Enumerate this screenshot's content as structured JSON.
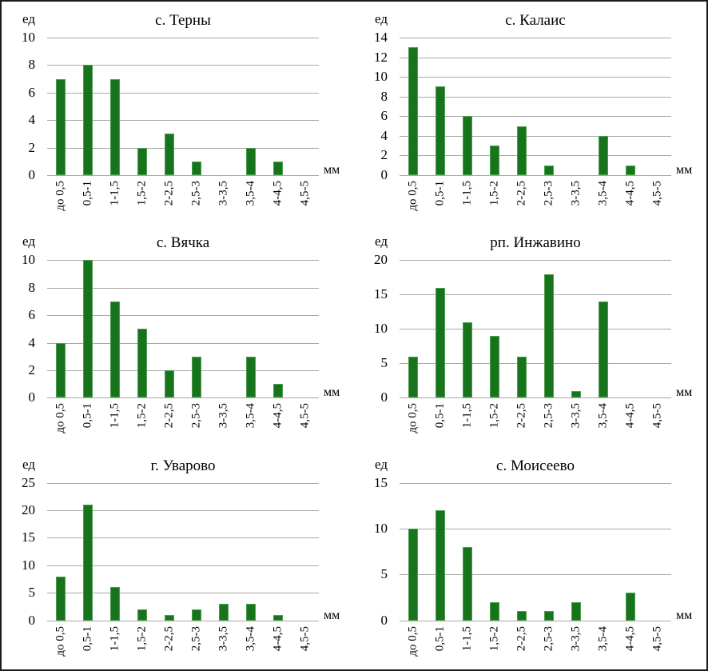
{
  "figure": {
    "background": "#ffffff",
    "border_color": "#1c1c1c",
    "bar_color": "#17741c",
    "grid_color": "#a8a8a8"
  },
  "chart_data": [
    {
      "type": "bar",
      "title": "с. Терны",
      "ylabel": "ед",
      "xlabel": "мм",
      "categories": [
        "до 0,5",
        "0,5-1",
        "1-1,5",
        "1,5-2",
        "2-2,5",
        "2,5-3",
        "3-3,5",
        "3,5-4",
        "4-4,5",
        "4,5-5"
      ],
      "values": [
        7,
        8,
        7,
        2,
        3,
        1,
        0,
        2,
        1,
        0
      ],
      "ylim": [
        0,
        10
      ],
      "ytick_step": 2,
      "grid": true,
      "legend": "none"
    },
    {
      "type": "bar",
      "title": "с. Калаис",
      "ylabel": "ед",
      "xlabel": "мм",
      "categories": [
        "до 0,5",
        "0,5-1",
        "1-1,5",
        "1,5-2",
        "2-2,5",
        "2,5-3",
        "3-3,5",
        "3,5-4",
        "4-4,5",
        "4,5-5"
      ],
      "values": [
        13,
        9,
        6,
        3,
        5,
        1,
        0,
        4,
        1,
        0
      ],
      "ylim": [
        0,
        14
      ],
      "ytick_step": 2,
      "grid": true,
      "legend": "none"
    },
    {
      "type": "bar",
      "title": "с. Вячка",
      "ylabel": "ед",
      "xlabel": "мм",
      "categories": [
        "до 0,5",
        "0,5-1",
        "1-1,5",
        "1,5-2",
        "2-2,5",
        "2,5-3",
        "3-3,5",
        "3,5-4",
        "4-4,5",
        "4,5-5"
      ],
      "values": [
        4,
        10,
        7,
        5,
        2,
        3,
        0,
        3,
        1,
        0
      ],
      "ylim": [
        0,
        10
      ],
      "ytick_step": 2,
      "grid": true,
      "legend": "none"
    },
    {
      "type": "bar",
      "title": "рп. Инжавино",
      "ylabel": "ед",
      "xlabel": "мм",
      "categories": [
        "до 0,5",
        "0,5-1",
        "1-1,5",
        "1,5-2",
        "2-2,5",
        "2,5-3",
        "3-3,5",
        "3,5-4",
        "4-4,5",
        "4,5-5"
      ],
      "values": [
        6,
        16,
        11,
        9,
        6,
        18,
        1,
        14,
        0,
        0
      ],
      "ylim": [
        0,
        20
      ],
      "ytick_step": 5,
      "grid": true,
      "legend": "none"
    },
    {
      "type": "bar",
      "title": "г. Уварово",
      "ylabel": "ед",
      "xlabel": "мм",
      "categories": [
        "до 0,5",
        "0,5-1",
        "1-1,5",
        "1,5-2",
        "2-2,5",
        "2,5-3",
        "3-3,5",
        "3,5-4",
        "4-4,5",
        "4,5-5"
      ],
      "values": [
        8,
        21,
        6,
        2,
        1,
        2,
        3,
        3,
        1,
        0
      ],
      "ylim": [
        0,
        25
      ],
      "ytick_step": 5,
      "grid": true,
      "legend": "none"
    },
    {
      "type": "bar",
      "title": "с. Моисеево",
      "ylabel": "ед",
      "xlabel": "мм",
      "categories": [
        "до 0,5",
        "0,5-1",
        "1-1,5",
        "1,5-2",
        "2-2,5",
        "2,5-3",
        "3-3,5",
        "3,5-4",
        "4-4,5",
        "4,5-5"
      ],
      "values": [
        10,
        12,
        8,
        2,
        1,
        1,
        2,
        0,
        3,
        0
      ],
      "ylim": [
        0,
        15
      ],
      "ytick_step": 5,
      "grid": true,
      "legend": "none"
    }
  ]
}
